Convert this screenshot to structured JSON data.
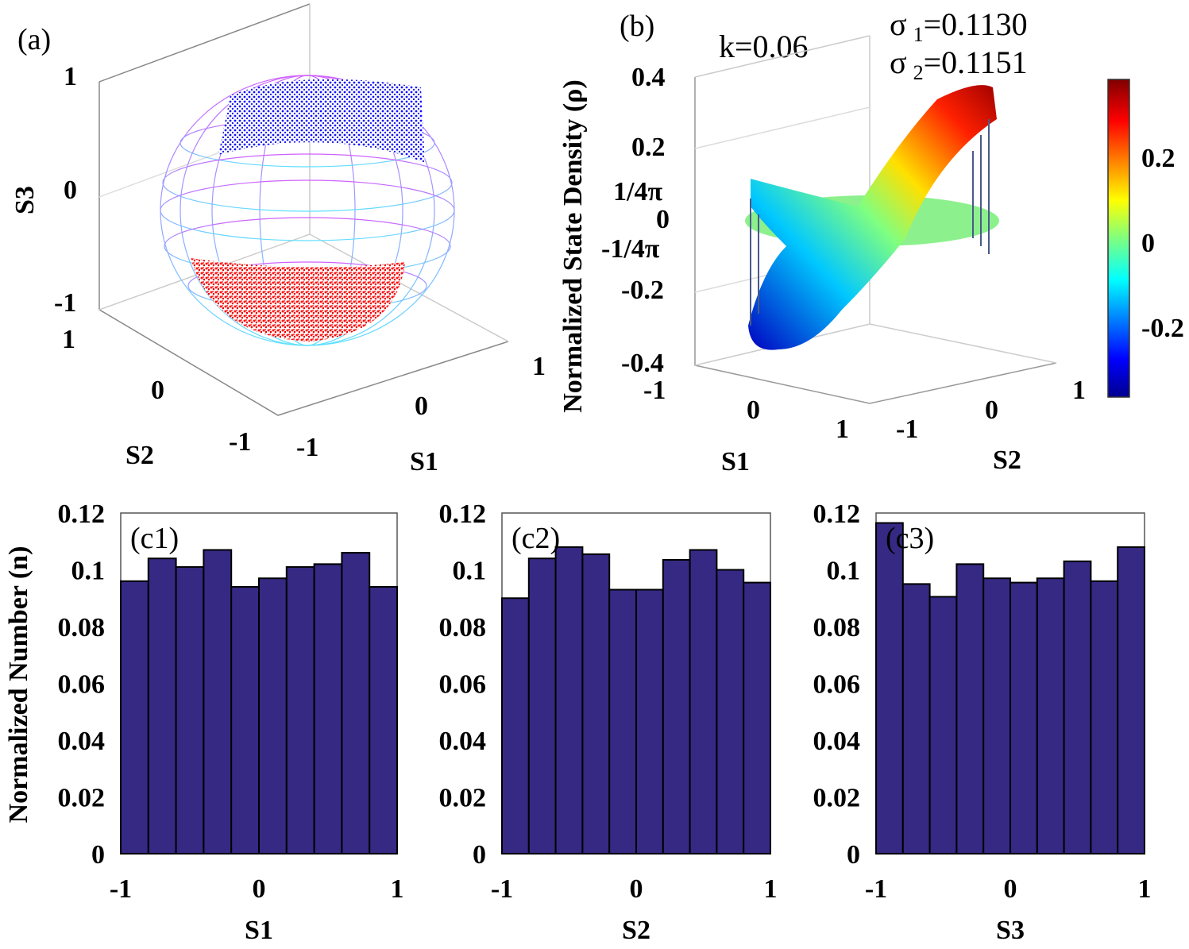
{
  "chart_data": [
    {
      "type": "scatter",
      "panel": "(a)",
      "description_3d": "Poincare sphere",
      "xlabel": "S1",
      "ylabel": "S2",
      "zlabel": "S3",
      "x_ticks": [
        "-1",
        "0",
        "1"
      ],
      "y_ticks": [
        "-1",
        "0",
        "1"
      ],
      "z_ticks": [
        "-1",
        "0",
        "1"
      ],
      "series": [
        {
          "name": "upper cap",
          "color": "#1a1aff"
        },
        {
          "name": "lower cap",
          "color": "#ff1a1a"
        }
      ]
    },
    {
      "type": "area",
      "panel": "(b)",
      "annotation_k": "k=0.06",
      "sigma1_symbol": "σ",
      "sigma1_sub": "1",
      "sigma1_value": "=0.1130",
      "sigma2_symbol": "σ",
      "sigma2_sub": "2",
      "sigma2_value": "=0.1151",
      "zlabel": "Normalized State Density (ρ)",
      "xlabel": "S1",
      "ylabel": "S2",
      "z_ticks": [
        "0.4",
        "0.2",
        "1/4π",
        "0",
        "-1/4π",
        "-0.2",
        "-0.4"
      ],
      "x_ticks": [
        "-1",
        "0",
        "1"
      ],
      "y_ticks": [
        "-1",
        "0",
        "1"
      ],
      "colorbar_ticks": [
        "0.2",
        "0",
        "-0.2"
      ],
      "zlim": [
        -0.4,
        0.4
      ]
    },
    {
      "type": "bar",
      "panel": "(c1)",
      "xlabel": "S1",
      "ylabel": "Normalized Number (n)",
      "xlim": [
        -1,
        1
      ],
      "ylim": [
        0,
        0.12
      ],
      "x_ticks": [
        "-1",
        "0",
        "1"
      ],
      "y_ticks": [
        "0.12",
        "0.1",
        "0.08",
        "0.06",
        "0.04",
        "0.02",
        "0"
      ],
      "values": [
        0.096,
        0.104,
        0.101,
        0.107,
        0.094,
        0.097,
        0.101,
        0.102,
        0.106,
        0.094
      ]
    },
    {
      "type": "bar",
      "panel": "(c2)",
      "xlabel": "S2",
      "xlim": [
        -1,
        1
      ],
      "ylim": [
        0,
        0.12
      ],
      "x_ticks": [
        "-1",
        "0",
        "1"
      ],
      "y_ticks": [
        "0.12",
        "0.1",
        "0.08",
        "0.06",
        "0.04",
        "0.02",
        "0"
      ],
      "values": [
        0.09,
        0.104,
        0.108,
        0.1055,
        0.093,
        0.093,
        0.1035,
        0.107,
        0.1,
        0.0955
      ]
    },
    {
      "type": "bar",
      "panel": "(c3)",
      "xlabel": "S3",
      "xlim": [
        -1,
        1
      ],
      "ylim": [
        0,
        0.12
      ],
      "x_ticks": [
        "-1",
        "0",
        "1"
      ],
      "y_ticks": [
        "0.12",
        "0.1",
        "0.08",
        "0.06",
        "0.04",
        "0.02",
        "0"
      ],
      "values": [
        0.1165,
        0.095,
        0.0905,
        0.102,
        0.097,
        0.0955,
        0.097,
        0.103,
        0.096,
        0.108
      ]
    }
  ],
  "colors": {
    "bar": "#352984",
    "bar_edge": "#000000"
  }
}
